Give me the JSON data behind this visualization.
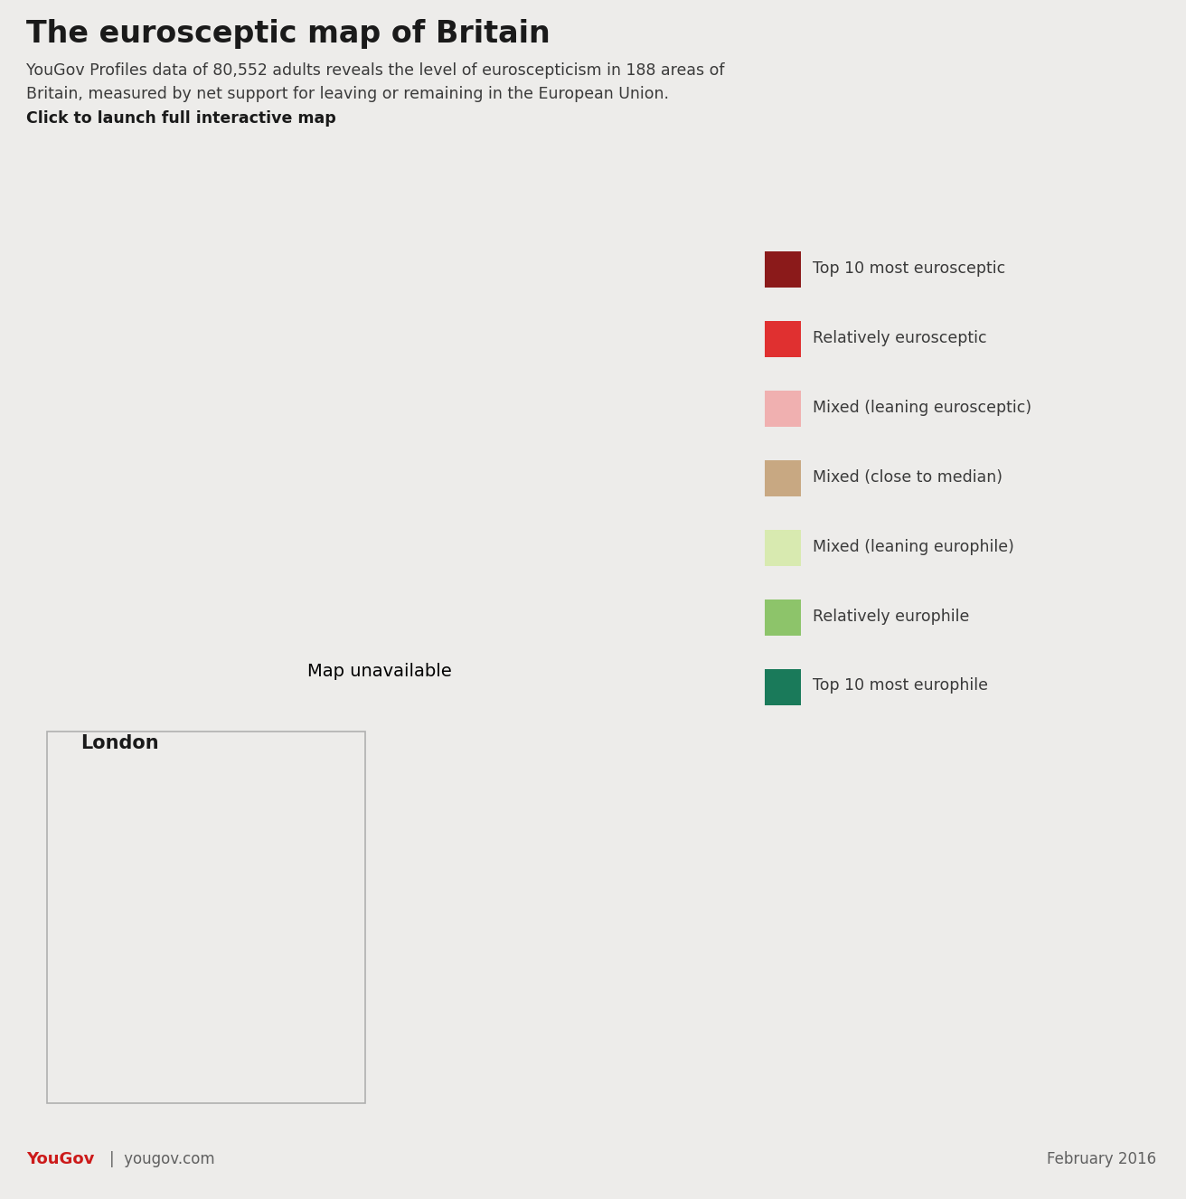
{
  "title": "The eurosceptic map of Britain",
  "subtitle_line1": "YouGov Profiles data of 80,552 adults reveals the level of euroscepticism in 188 areas of",
  "subtitle_line2": "Britain, measured by net support for leaving or remaining in the European Union.",
  "subtitle_line3_bold": "Click to launch full interactive map",
  "background_color": "#edecea",
  "map_bg": "#ffffff",
  "footer_right": "February 2016",
  "legend_items": [
    {
      "label": "Top 10 most eurosceptic",
      "color": "#8B1A1A"
    },
    {
      "label": "Relatively eurosceptic",
      "color": "#E03030"
    },
    {
      "label": "Mixed (leaning eurosceptic)",
      "color": "#F0B0B0"
    },
    {
      "label": "Mixed (close to median)",
      "color": "#C8A882"
    },
    {
      "label": "Mixed (leaning europhile)",
      "color": "#D8EAB0"
    },
    {
      "label": "Relatively europhile",
      "color": "#8DC46A"
    },
    {
      "label": "Top 10 most europhile",
      "color": "#1A7A5A"
    }
  ],
  "grey_color": "#AAAAAA",
  "london_label": "London",
  "header_bg": "#edecea",
  "map_xlim": [
    -8.2,
    2.0
  ],
  "map_ylim": [
    49.8,
    61.0
  ],
  "london_xlim": [
    -0.55,
    0.35
  ],
  "london_ylim": [
    51.27,
    51.72
  ]
}
